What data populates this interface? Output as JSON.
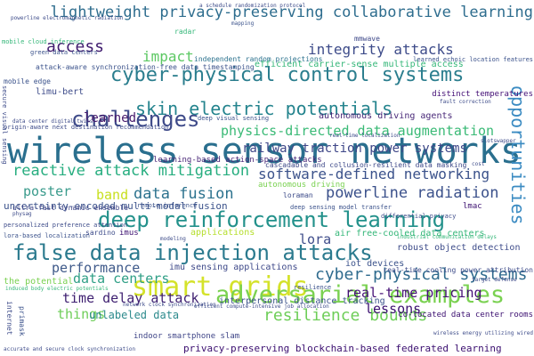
{
  "colors": {
    "background": "#ffffff",
    "palette": [
      "#3b0f70",
      "#404688",
      "#31688e",
      "#26828e",
      "#1f9e89",
      "#35b779",
      "#6ece58",
      "#b5de2b",
      "#fde725"
    ]
  },
  "words": [
    {
      "text": "wireless sensor networks",
      "color": "#2a6f8e"
    },
    {
      "text": "cyber-physical control systems",
      "color": "#2b7e8e"
    },
    {
      "text": "deep reinforcement learning",
      "color": "#23918b"
    },
    {
      "text": "false data injection attacks",
      "color": "#2b7a8e"
    },
    {
      "text": "smart grids",
      "color": "#d4e22a"
    },
    {
      "text": "adversarial examples",
      "color": "#7ad151"
    },
    {
      "text": "lightweight privacy-preserving collaborative learning",
      "color": "#2e6d8e"
    },
    {
      "text": "skin electric potentials",
      "color": "#25848e"
    },
    {
      "text": "challenges",
      "color": "#3e4a89"
    },
    {
      "text": "physics-directed data augmentation",
      "color": "#3aba76"
    },
    {
      "text": "reactive attack mitigation",
      "color": "#28ae80"
    },
    {
      "text": "software-defined networking",
      "color": "#3b528b"
    },
    {
      "text": "data fusion",
      "color": "#2c728e"
    },
    {
      "text": "powerline radiation",
      "color": "#3b518b"
    },
    {
      "text": "cyber-physical systems",
      "color": "#2f6b8e"
    },
    {
      "text": "railway traction power systems",
      "color": "#3f4788"
    },
    {
      "text": "integrity attacks",
      "color": "#3e4c8a"
    },
    {
      "text": "opportunities",
      "color": "#3b8bc2"
    },
    {
      "text": "real-time pricing",
      "color": "#440f76"
    },
    {
      "text": "resilience bounds",
      "color": "#6ece58"
    },
    {
      "text": "data centers",
      "color": "#2f9f86"
    },
    {
      "text": "time delay attack",
      "color": "#3e1f70"
    },
    {
      "text": "performance",
      "color": "#3f5a8a"
    },
    {
      "text": "lessons",
      "color": "#3b0f70"
    },
    {
      "text": "access",
      "color": "#3f1b6e"
    },
    {
      "text": "impact",
      "color": "#5cc863"
    },
    {
      "text": "learned",
      "color": "#481b6d"
    },
    {
      "text": "poster",
      "color": "#3a9b8c"
    },
    {
      "text": "band",
      "color": "#c8e020"
    },
    {
      "text": "things",
      "color": "#6ece58"
    },
    {
      "text": "lora",
      "color": "#3e4c8a"
    },
    {
      "text": "unlabeled data",
      "color": "#2c8a8c"
    },
    {
      "text": "privacy-preserving blockchain-based federated learning",
      "color": "#3b0f70"
    },
    {
      "text": "uncertainty-encoded multi-modal fusion",
      "color": "#3b528b"
    },
    {
      "text": "learning-based action-space attacks",
      "color": "#482677"
    },
    {
      "text": "efficient carrier-sense multiple access",
      "color": "#35b779"
    },
    {
      "text": "autonomous driving agents",
      "color": "#482878"
    },
    {
      "text": "imu sensing applications",
      "color": "#3e4989"
    },
    {
      "text": "iot devices",
      "color": "#3b528b"
    },
    {
      "text": "robust object detection",
      "color": "#3e4c8a"
    },
    {
      "text": "interpersonal distance tracking",
      "color": "#3b528b"
    },
    {
      "text": "indoor smartphone slam",
      "color": "#404688"
    },
    {
      "text": "co-located data center rooms",
      "color": "#3b0f70"
    },
    {
      "text": "air free-cooled data centers",
      "color": "#35b779"
    },
    {
      "text": "cascadable and collusion-resilient data masking",
      "color": "#3e4989"
    },
    {
      "text": "ultra-fast dynamic ensemble",
      "color": "#404688"
    },
    {
      "text": "limu-bert",
      "color": "#3e4c8a"
    },
    {
      "text": "mobile edge",
      "color": "#3b528b"
    },
    {
      "text": "distinct temperatures",
      "color": "#440f76"
    },
    {
      "text": "mmwave",
      "color": "#3e4989"
    },
    {
      "text": "independent random projections",
      "color": "#2c728e"
    },
    {
      "text": "green data centers",
      "color": "#3b528b"
    },
    {
      "text": "autonomous driving",
      "color": "#7ad151"
    },
    {
      "text": "applications",
      "color": "#b5de2b"
    },
    {
      "text": "imus",
      "color": "#3b0f70"
    },
    {
      "text": "sardino",
      "color": "#3e4c8a"
    },
    {
      "text": "lmac",
      "color": "#3b0f70"
    },
    {
      "text": "the potential",
      "color": "#7ad151"
    },
    {
      "text": "resilience",
      "color": "#3b528b"
    },
    {
      "text": "real-time cooling power attribution",
      "color": "#3e4c8a"
    },
    {
      "text": "internet",
      "color": "#3e4c8a"
    },
    {
      "text": "primask",
      "color": "#3b528b"
    },
    {
      "text": "radar",
      "color": "#35b779"
    },
    {
      "text": "mapping",
      "color": "#3b528b"
    },
    {
      "text": "mobile cloud inference",
      "color": "#35b779"
    },
    {
      "text": "deep visual sensing",
      "color": "#3b528b"
    },
    {
      "text": "attack-aware synchronization-free data timestamping",
      "color": "#3b528b"
    },
    {
      "text": "learned echoic location features",
      "color": "#3b528b"
    },
    {
      "text": "data center digital twins",
      "color": "#3e4c8a"
    },
    {
      "text": "origin-aware next destination recommendation",
      "color": "#3e4c8a"
    },
    {
      "text": "secure visual sensing",
      "color": "#3e4c8a"
    },
    {
      "text": "remote inference",
      "color": "#3b528b"
    },
    {
      "text": "loraman",
      "color": "#3e4c8a"
    },
    {
      "text": "differential privacy",
      "color": "#3e4c8a"
    },
    {
      "text": "deep sensing model transfer",
      "color": "#3b528b"
    },
    {
      "text": "lora-based localization",
      "color": "#3b528b"
    },
    {
      "text": "personalized preference attention",
      "color": "#3e4c8a"
    },
    {
      "text": "modeling",
      "color": "#3e4c8a"
    },
    {
      "text": "physag",
      "color": "#3e4c8a"
    },
    {
      "text": "a schedule randomization protocol",
      "color": "#3e4c8a"
    },
    {
      "text": "powerline electromagnetic radiation",
      "color": "#3e4c8a"
    },
    {
      "text": "fault correction",
      "color": "#3e4c8a"
    },
    {
      "text": "real-time localization",
      "color": "#3e4c8a"
    },
    {
      "text": "slotswapper",
      "color": "#3e4c8a"
    },
    {
      "text": "induced body electric potentials",
      "color": "#35b779"
    },
    {
      "text": "accurate and secure clock synchronization",
      "color": "#3e4c8a"
    },
    {
      "text": "efficient compute-intensive job allocation",
      "color": "#3e4c8a"
    },
    {
      "text": "wireless energy utilizing wired",
      "color": "#3e4c8a"
    },
    {
      "text": "target defense",
      "color": "#3e4c8a"
    },
    {
      "text": "network clock synchronization",
      "color": "#3e4c8a"
    },
    {
      "text": "industrial communication delays",
      "color": "#35b779"
    },
    {
      "text": "cost",
      "color": "#3e4c8a"
    }
  ]
}
